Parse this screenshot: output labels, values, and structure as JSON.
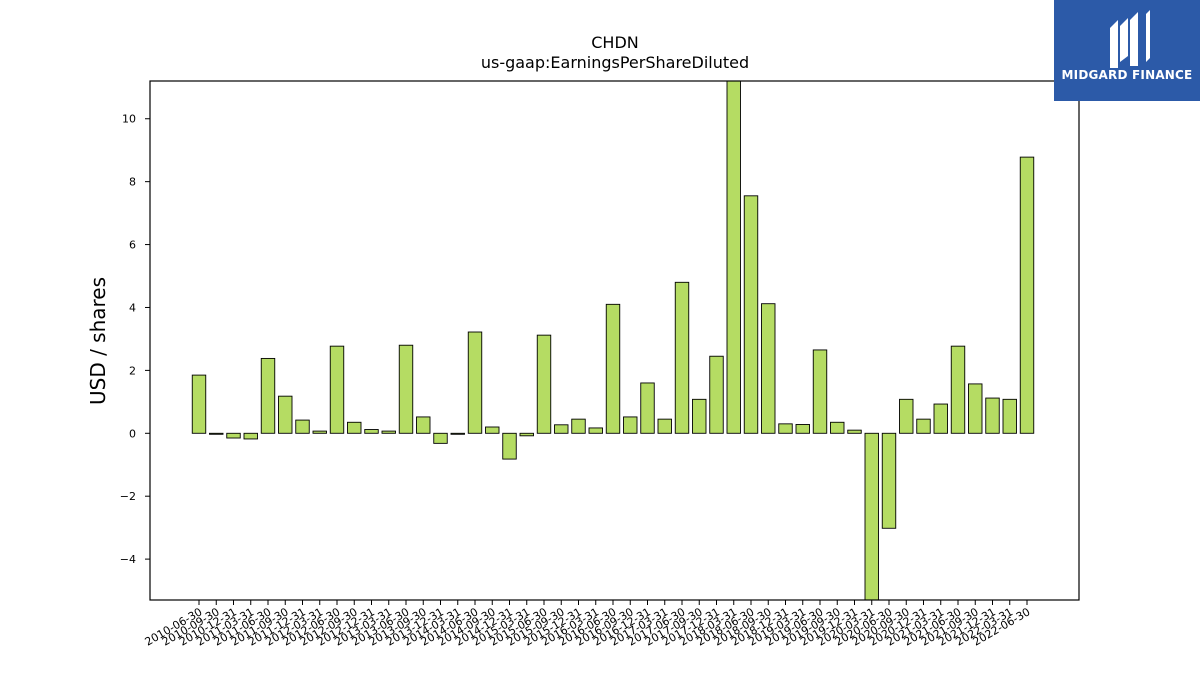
{
  "chart_data": {
    "type": "bar",
    "title": "CHDN",
    "subtitle": "us-gaap:EarningsPerShareDiluted",
    "xlabel": "",
    "ylabel": "USD / shares",
    "ylim": [
      -5.3,
      11.2
    ],
    "yticks": [
      -4,
      -2,
      0,
      2,
      4,
      6,
      8,
      10
    ],
    "bar_color": "#b5dc63",
    "edge_color": "#000000",
    "categories": [
      "2010-06-30",
      "2010-09-30",
      "2010-12-31",
      "2011-03-31",
      "2011-06-30",
      "2011-09-30",
      "2011-12-31",
      "2012-03-31",
      "2012-06-30",
      "2012-09-30",
      "2012-12-31",
      "2013-03-31",
      "2013-06-30",
      "2013-09-30",
      "2013-12-31",
      "2014-03-31",
      "2014-06-30",
      "2014-09-30",
      "2014-12-31",
      "2015-03-31",
      "2015-06-30",
      "2015-09-30",
      "2015-12-31",
      "2016-03-31",
      "2016-06-30",
      "2016-09-30",
      "2016-12-31",
      "2017-03-31",
      "2017-06-30",
      "2017-09-30",
      "2017-12-31",
      "2018-03-31",
      "2018-06-30",
      "2018-09-30",
      "2018-12-31",
      "2019-03-31",
      "2019-06-30",
      "2019-09-30",
      "2019-12-31",
      "2020-03-31",
      "2020-06-30",
      "2020-09-30",
      "2020-12-31",
      "2021-03-31",
      "2021-06-30",
      "2021-09-30",
      "2021-12-31",
      "2022-03-31",
      "2022-06-30"
    ],
    "values": [
      1.85,
      -0.03,
      -0.15,
      -0.18,
      2.38,
      1.18,
      0.42,
      0.07,
      2.77,
      0.35,
      0.12,
      0.07,
      2.8,
      0.52,
      -0.32,
      -0.03,
      3.22,
      0.2,
      -0.82,
      -0.08,
      3.12,
      0.27,
      0.45,
      0.17,
      4.1,
      0.52,
      1.6,
      0.45,
      4.8,
      1.08,
      2.45,
      11.2,
      7.55,
      4.12,
      0.3,
      0.28,
      2.65,
      0.35,
      0.1,
      -5.3,
      -3.02,
      1.08,
      0.45,
      0.93,
      2.77,
      1.57,
      1.12,
      1.08,
      8.78
    ]
  },
  "logo": {
    "text": "MIDGARD FINANCE",
    "background": "#2c5aa8"
  }
}
